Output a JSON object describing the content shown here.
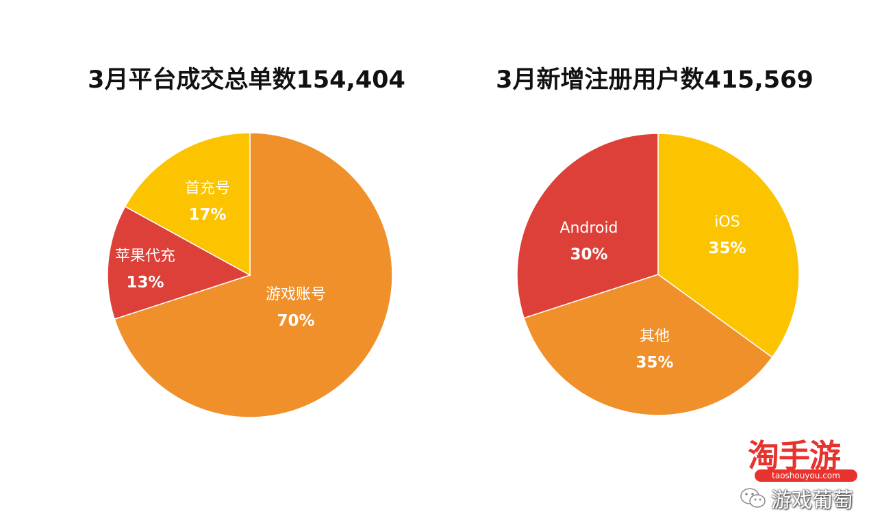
{
  "chart_data": [
    {
      "type": "pie",
      "title": "3月平台成交总单数154,404",
      "slices": [
        {
          "label": "游戏账号",
          "value": 70,
          "value_label": "70%",
          "color": "#f0902a"
        },
        {
          "label": "苹果代充",
          "value": 13,
          "value_label": "13%",
          "color": "#dd4038"
        },
        {
          "label": "首充号",
          "value": 17,
          "value_label": "17%",
          "color": "#fcc300"
        }
      ]
    },
    {
      "type": "pie",
      "title": "3月新增注册用户数415,569",
      "slices": [
        {
          "label": "iOS",
          "value": 35,
          "value_label": "35%",
          "color": "#fcc300"
        },
        {
          "label": "其他",
          "value": 35,
          "value_label": "35%",
          "color": "#f0902a"
        },
        {
          "label": "Android",
          "value": 30,
          "value_label": "30%",
          "color": "#dd4038"
        }
      ]
    }
  ],
  "watermark": {
    "logo": "淘手游",
    "url": "taoshouyou.com",
    "account": "游戏葡萄",
    "icon": "wechat-icon"
  }
}
